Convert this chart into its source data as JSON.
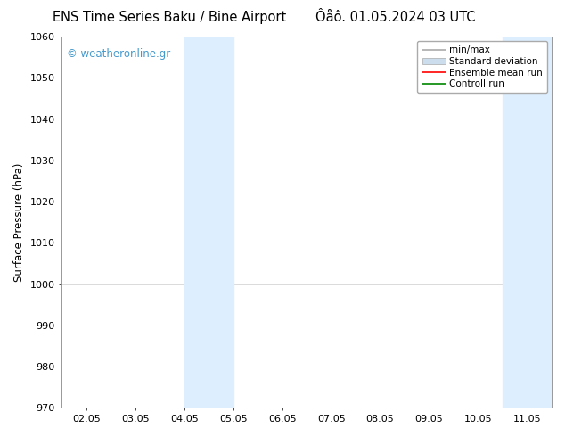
{
  "title_left": "ENS Time Series Baku / Bine Airport",
  "title_right": "Ôåô. 01.05.2024 03 UTC",
  "ylabel": "Surface Pressure (hPa)",
  "ylim": [
    970,
    1060
  ],
  "yticks": [
    970,
    980,
    990,
    1000,
    1010,
    1020,
    1030,
    1040,
    1050,
    1060
  ],
  "x_labels": [
    "02.05",
    "03.05",
    "04.05",
    "05.05",
    "06.05",
    "07.05",
    "08.05",
    "09.05",
    "10.05",
    "11.05"
  ],
  "x_values": [
    2,
    3,
    4,
    5,
    6,
    7,
    8,
    9,
    10,
    11
  ],
  "xlim": [
    1.5,
    11.5
  ],
  "shaded_regions": [
    {
      "xmin": 4.0,
      "xmax": 5.0,
      "color": "#ddeeff"
    },
    {
      "xmin": 10.5,
      "xmax": 11.5,
      "color": "#ddeeff"
    }
  ],
  "watermark_text": "© weatheronline.gr",
  "watermark_color": "#4499cc",
  "background_color": "#ffffff",
  "plot_bg_color": "#ffffff",
  "legend_items": [
    {
      "label": "min/max",
      "color": "#aaaaaa",
      "style": "line"
    },
    {
      "label": "Standard deviation",
      "color": "#ccddee",
      "style": "band"
    },
    {
      "label": "Ensemble mean run",
      "color": "#ff0000",
      "style": "line"
    },
    {
      "label": "Controll run",
      "color": "#008800",
      "style": "line"
    }
  ],
  "title_fontsize": 10.5,
  "tick_fontsize": 8,
  "ylabel_fontsize": 8.5,
  "legend_fontsize": 7.5,
  "watermark_fontsize": 8.5,
  "figsize": [
    6.34,
    4.9
  ],
  "dpi": 100
}
